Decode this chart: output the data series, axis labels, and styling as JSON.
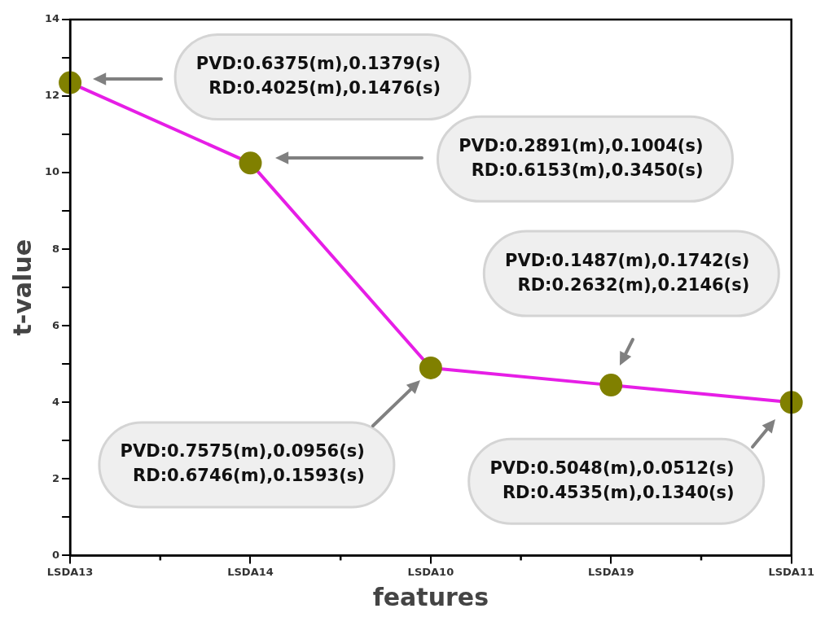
{
  "chart_data": {
    "type": "line",
    "xlabel": "features",
    "ylabel": "t-value",
    "categories": [
      "LSDA13",
      "LSDA14",
      "LSDA10",
      "LSDA19",
      "LSDA11"
    ],
    "series": [
      {
        "color": "#e61ee6",
        "colors": [
          "#808000",
          "#808000",
          "#808000",
          "#808000",
          "#808000"
        ],
        "values": [
          12.35,
          10.25,
          4.9,
          4.45,
          4.0
        ]
      }
    ],
    "marker": "circle",
    "line_style": "solid",
    "grid": false,
    "legend": false,
    "ylim": [
      0,
      14
    ],
    "yticks": [
      0,
      {
        "value": 1,
        "label": null
      },
      2,
      {
        "value": 3,
        "label": null
      },
      4,
      {
        "value": 5,
        "label": null
      },
      6,
      {
        "value": 7,
        "label": null
      },
      8,
      {
        "value": 9,
        "label": null
      },
      10,
      {
        "value": 11,
        "label": null
      },
      12,
      {
        "value": 13,
        "label": null
      },
      14
    ],
    "annotations": [
      "PVD:0.6375(m),0.1379(s)\nRD:0.4025(m),0.1476(s)",
      "PVD:0.2891(m),0.1004(s)\nRD:0.6153(m),0.3450(s)",
      "PVD:0.7575(m),0.0956(s)\nRD:0.6746(m),0.1593(s)",
      "PVD:0.1487(m),0.1742(s)\nRD:0.2632(m),0.2146(s)",
      "PVD:0.5048(m),0.0512(s)\nRD:0.4535(m),0.1340(s)"
    ]
  }
}
